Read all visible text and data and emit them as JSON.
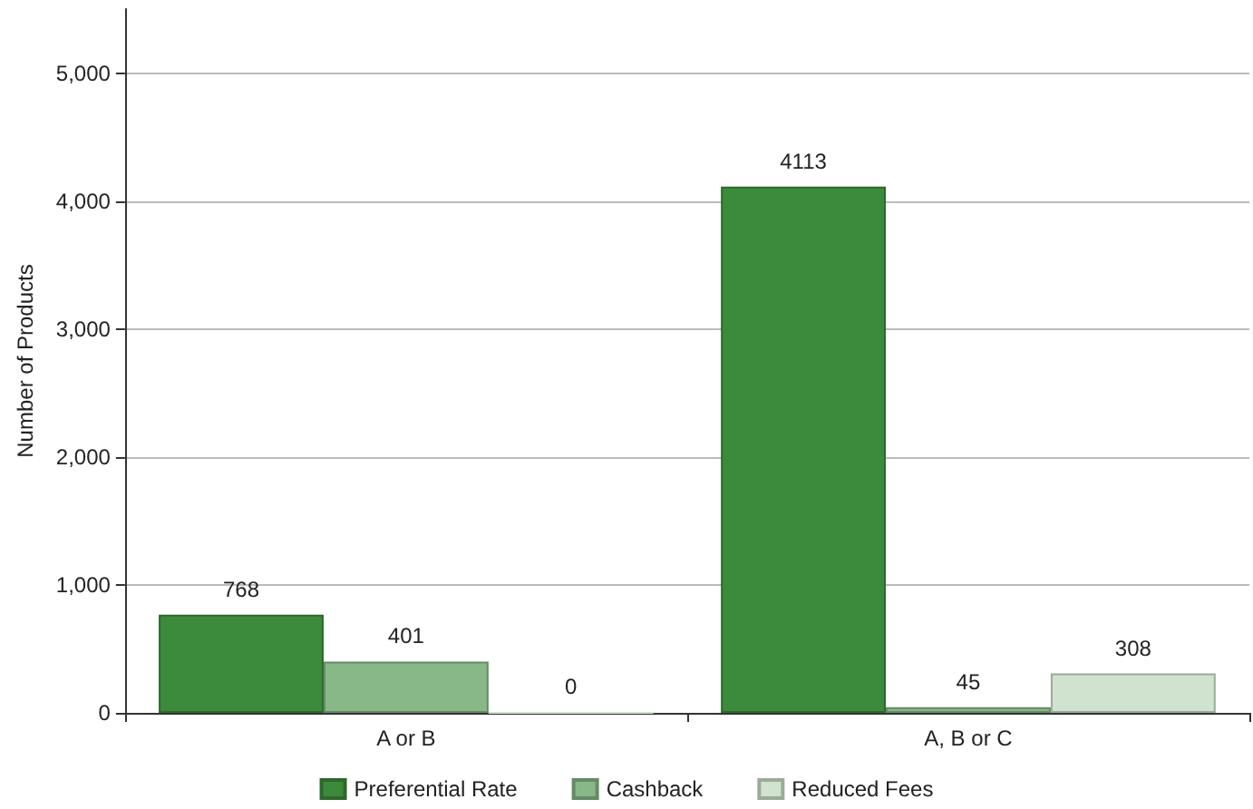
{
  "chart_data": {
    "type": "bar",
    "ylabel": "Number of Products",
    "categories": [
      "A or B",
      "A, B or C"
    ],
    "series": [
      {
        "name": "Preferential Rate",
        "color": "#3c8a3c",
        "values": [
          768,
          4113
        ]
      },
      {
        "name": "Cashback",
        "color": "#88b888",
        "values": [
          401,
          45
        ]
      },
      {
        "name": "Reduced Fees",
        "color": "#cfe3cf",
        "values": [
          0,
          308
        ]
      }
    ],
    "ylim": [
      0,
      5500
    ],
    "yticks": [
      0,
      {
        "value": 1000,
        "label": "1,000"
      },
      {
        "value": 2000,
        "label": "2,000"
      },
      {
        "value": 3000,
        "label": "3,000"
      },
      {
        "value": 4000,
        "label": "4,000"
      },
      {
        "value": 5000,
        "label": "5,000"
      }
    ],
    "grid": "y",
    "legend": "bottom",
    "data_labels": true
  }
}
